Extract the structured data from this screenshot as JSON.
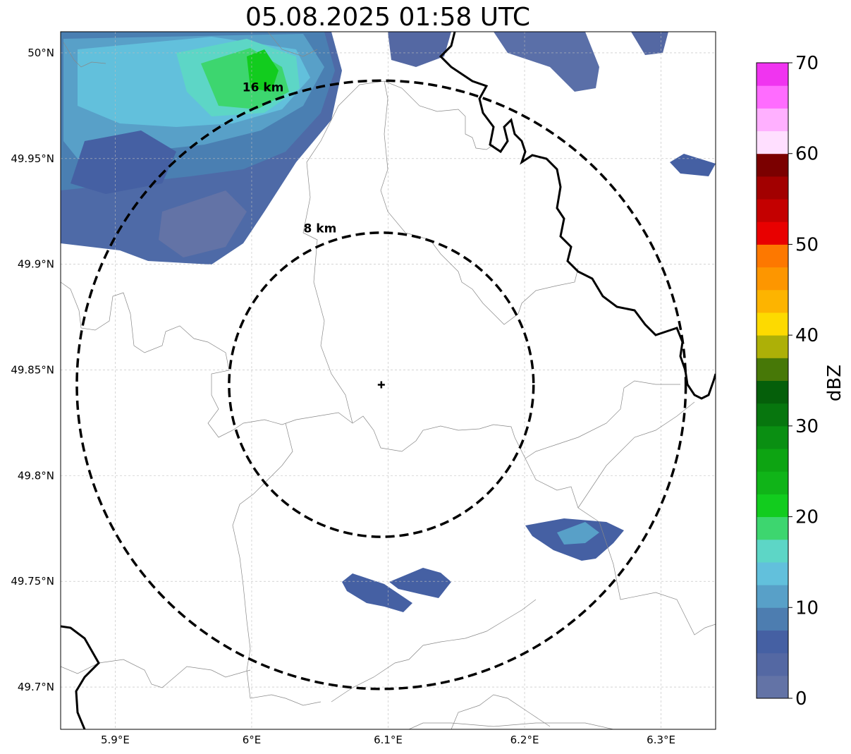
{
  "title": "05.08.2025 01:58 UTC",
  "map": {
    "lon_min": 5.86,
    "lon_max": 6.34,
    "lat_min": 49.68,
    "lat_max": 50.01,
    "x_ticks": [
      {
        "value": 5.9,
        "label": "5.9°E"
      },
      {
        "value": 6.0,
        "label": "6°E"
      },
      {
        "value": 6.1,
        "label": "6.1°E"
      },
      {
        "value": 6.2,
        "label": "6.2°E"
      },
      {
        "value": 6.3,
        "label": "6.3°E"
      }
    ],
    "y_ticks": [
      {
        "value": 50.0,
        "label": "50°N"
      },
      {
        "value": 49.95,
        "label": "49.95°N"
      },
      {
        "value": 49.9,
        "label": "49.9°N"
      },
      {
        "value": 49.85,
        "label": "49.85°N"
      },
      {
        "value": 49.8,
        "label": "49.8°N"
      },
      {
        "value": 49.75,
        "label": "49.75°N"
      },
      {
        "value": 49.7,
        "label": "49.7°N"
      }
    ],
    "radar_site": {
      "lon": 6.095,
      "lat": 49.843
    },
    "rings": [
      {
        "label": "8 km",
        "radius_km": 8
      },
      {
        "label": "16 km",
        "radius_km": 16
      }
    ]
  },
  "colorbar": {
    "label": "dBZ",
    "min": 0,
    "max": 70,
    "ticks": [
      "0",
      "10",
      "20",
      "30",
      "40",
      "50",
      "60",
      "70"
    ],
    "colors": [
      "#6373a6",
      "#5468a3",
      "#4560a3",
      "#4d7db0",
      "#58a0c8",
      "#62c0dc",
      "#5dd6c6",
      "#3dd66f",
      "#12cc1e",
      "#10b418",
      "#0da412",
      "#0a8f12",
      "#07760e",
      "#055f0a",
      "#477807",
      "#adb007",
      "#fdda00",
      "#fdb400",
      "#fd9600",
      "#fd7800",
      "#e80000",
      "#c40000",
      "#a20000",
      "#7b0000",
      "#ffdfff",
      "#ffb0ff",
      "#ff6cff",
      "#f034f0"
    ]
  }
}
